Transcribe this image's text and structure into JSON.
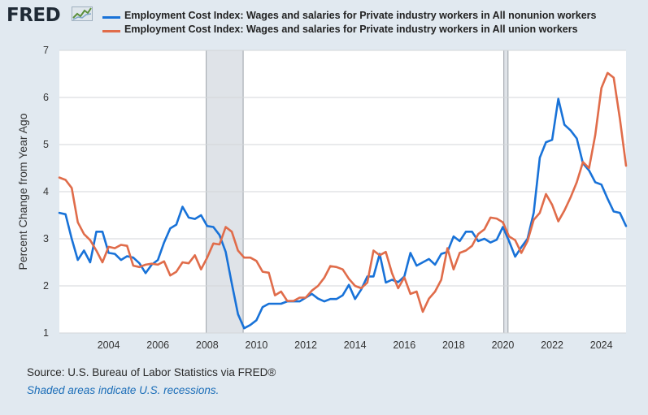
{
  "brand": {
    "logo_text": "FRED",
    "logo_icon": "line-chart-icon"
  },
  "chart_data": {
    "type": "line",
    "title": "",
    "xlabel": "",
    "ylabel": "Percent Change from Year Ago",
    "xlim": [
      2002.0,
      2025.0
    ],
    "ylim": [
      1,
      7
    ],
    "yticks": [
      1,
      2,
      3,
      4,
      5,
      6,
      7
    ],
    "xticks": [
      2004,
      2006,
      2008,
      2010,
      2012,
      2014,
      2016,
      2018,
      2020,
      2022,
      2024
    ],
    "grid": {
      "horizontal": true,
      "vertical": false
    },
    "legend": {
      "position": "top"
    },
    "recessions": [
      {
        "start": 2007.96,
        "end": 2009.46
      },
      {
        "start": 2020.04,
        "end": 2020.21
      }
    ],
    "series": [
      {
        "name": "Employment Cost Index: Wages and salaries for Private industry workers in All nonunion workers",
        "color": "#1872d8",
        "points": [
          [
            2002.0,
            3.55
          ],
          [
            2002.25,
            3.52
          ],
          [
            2002.5,
            3.0
          ],
          [
            2002.75,
            2.55
          ],
          [
            2003.0,
            2.75
          ],
          [
            2003.25,
            2.5
          ],
          [
            2003.5,
            3.15
          ],
          [
            2003.75,
            3.15
          ],
          [
            2004.0,
            2.7
          ],
          [
            2004.25,
            2.68
          ],
          [
            2004.5,
            2.55
          ],
          [
            2004.75,
            2.63
          ],
          [
            2005.0,
            2.6
          ],
          [
            2005.25,
            2.48
          ],
          [
            2005.5,
            2.27
          ],
          [
            2005.75,
            2.45
          ],
          [
            2006.0,
            2.55
          ],
          [
            2006.25,
            2.92
          ],
          [
            2006.5,
            3.22
          ],
          [
            2006.75,
            3.3
          ],
          [
            2007.0,
            3.68
          ],
          [
            2007.25,
            3.45
          ],
          [
            2007.5,
            3.42
          ],
          [
            2007.75,
            3.5
          ],
          [
            2008.0,
            3.27
          ],
          [
            2008.25,
            3.25
          ],
          [
            2008.5,
            3.08
          ],
          [
            2008.75,
            2.72
          ],
          [
            2009.0,
            2.05
          ],
          [
            2009.25,
            1.4
          ],
          [
            2009.5,
            1.1
          ],
          [
            2009.75,
            1.17
          ],
          [
            2010.0,
            1.27
          ],
          [
            2010.25,
            1.55
          ],
          [
            2010.5,
            1.62
          ],
          [
            2010.75,
            1.62
          ],
          [
            2011.0,
            1.62
          ],
          [
            2011.25,
            1.67
          ],
          [
            2011.5,
            1.67
          ],
          [
            2011.75,
            1.67
          ],
          [
            2012.0,
            1.75
          ],
          [
            2012.25,
            1.83
          ],
          [
            2012.5,
            1.73
          ],
          [
            2012.75,
            1.67
          ],
          [
            2013.0,
            1.72
          ],
          [
            2013.25,
            1.72
          ],
          [
            2013.5,
            1.8
          ],
          [
            2013.75,
            2.02
          ],
          [
            2014.0,
            1.72
          ],
          [
            2014.25,
            1.92
          ],
          [
            2014.5,
            2.2
          ],
          [
            2014.75,
            2.2
          ],
          [
            2015.0,
            2.68
          ],
          [
            2015.25,
            2.07
          ],
          [
            2015.5,
            2.13
          ],
          [
            2015.75,
            2.08
          ],
          [
            2016.0,
            2.2
          ],
          [
            2016.25,
            2.7
          ],
          [
            2016.5,
            2.43
          ],
          [
            2016.75,
            2.5
          ],
          [
            2017.0,
            2.57
          ],
          [
            2017.25,
            2.45
          ],
          [
            2017.5,
            2.68
          ],
          [
            2017.75,
            2.72
          ],
          [
            2018.0,
            3.05
          ],
          [
            2018.25,
            2.95
          ],
          [
            2018.5,
            3.15
          ],
          [
            2018.75,
            3.15
          ],
          [
            2019.0,
            2.95
          ],
          [
            2019.25,
            3.0
          ],
          [
            2019.5,
            2.92
          ],
          [
            2019.75,
            2.98
          ],
          [
            2020.0,
            3.25
          ],
          [
            2020.25,
            2.95
          ],
          [
            2020.5,
            2.62
          ],
          [
            2020.75,
            2.82
          ],
          [
            2021.0,
            3.0
          ],
          [
            2021.25,
            3.55
          ],
          [
            2021.5,
            4.72
          ],
          [
            2021.75,
            5.05
          ],
          [
            2022.0,
            5.1
          ],
          [
            2022.25,
            5.97
          ],
          [
            2022.5,
            5.42
          ],
          [
            2022.75,
            5.3
          ],
          [
            2023.0,
            5.13
          ],
          [
            2023.25,
            4.6
          ],
          [
            2023.5,
            4.45
          ],
          [
            2023.75,
            4.2
          ],
          [
            2024.0,
            4.15
          ],
          [
            2024.25,
            3.85
          ],
          [
            2024.5,
            3.58
          ],
          [
            2024.75,
            3.55
          ],
          [
            2025.0,
            3.27
          ]
        ]
      },
      {
        "name": "Employment Cost Index: Wages and salaries for Private industry workers in All union workers",
        "color": "#e06c4a",
        "points": [
          [
            2002.0,
            4.3
          ],
          [
            2002.25,
            4.25
          ],
          [
            2002.5,
            4.08
          ],
          [
            2002.75,
            3.35
          ],
          [
            2003.0,
            3.1
          ],
          [
            2003.25,
            2.97
          ],
          [
            2003.5,
            2.75
          ],
          [
            2003.75,
            2.5
          ],
          [
            2004.0,
            2.83
          ],
          [
            2004.25,
            2.8
          ],
          [
            2004.5,
            2.87
          ],
          [
            2004.75,
            2.85
          ],
          [
            2005.0,
            2.43
          ],
          [
            2005.25,
            2.4
          ],
          [
            2005.5,
            2.45
          ],
          [
            2005.75,
            2.47
          ],
          [
            2006.0,
            2.45
          ],
          [
            2006.25,
            2.52
          ],
          [
            2006.5,
            2.22
          ],
          [
            2006.75,
            2.3
          ],
          [
            2007.0,
            2.5
          ],
          [
            2007.25,
            2.48
          ],
          [
            2007.5,
            2.65
          ],
          [
            2007.75,
            2.35
          ],
          [
            2008.0,
            2.6
          ],
          [
            2008.25,
            2.9
          ],
          [
            2008.5,
            2.88
          ],
          [
            2008.75,
            3.25
          ],
          [
            2009.0,
            3.15
          ],
          [
            2009.25,
            2.75
          ],
          [
            2009.5,
            2.6
          ],
          [
            2009.75,
            2.6
          ],
          [
            2010.0,
            2.53
          ],
          [
            2010.25,
            2.3
          ],
          [
            2010.5,
            2.28
          ],
          [
            2010.75,
            1.8
          ],
          [
            2011.0,
            1.88
          ],
          [
            2011.25,
            1.68
          ],
          [
            2011.5,
            1.68
          ],
          [
            2011.75,
            1.75
          ],
          [
            2012.0,
            1.75
          ],
          [
            2012.25,
            1.9
          ],
          [
            2012.5,
            2.0
          ],
          [
            2012.75,
            2.17
          ],
          [
            2013.0,
            2.42
          ],
          [
            2013.25,
            2.4
          ],
          [
            2013.5,
            2.35
          ],
          [
            2013.75,
            2.15
          ],
          [
            2014.0,
            2.0
          ],
          [
            2014.25,
            1.95
          ],
          [
            2014.5,
            2.07
          ],
          [
            2014.75,
            2.75
          ],
          [
            2015.0,
            2.65
          ],
          [
            2015.25,
            2.72
          ],
          [
            2015.5,
            2.27
          ],
          [
            2015.75,
            1.95
          ],
          [
            2016.0,
            2.18
          ],
          [
            2016.25,
            1.83
          ],
          [
            2016.5,
            1.88
          ],
          [
            2016.75,
            1.45
          ],
          [
            2017.0,
            1.73
          ],
          [
            2017.25,
            1.88
          ],
          [
            2017.5,
            2.13
          ],
          [
            2017.75,
            2.8
          ],
          [
            2018.0,
            2.35
          ],
          [
            2018.25,
            2.7
          ],
          [
            2018.5,
            2.75
          ],
          [
            2018.75,
            2.85
          ],
          [
            2019.0,
            3.1
          ],
          [
            2019.25,
            3.2
          ],
          [
            2019.5,
            3.45
          ],
          [
            2019.75,
            3.43
          ],
          [
            2020.0,
            3.35
          ],
          [
            2020.25,
            3.05
          ],
          [
            2020.5,
            2.97
          ],
          [
            2020.75,
            2.7
          ],
          [
            2021.0,
            2.95
          ],
          [
            2021.25,
            3.4
          ],
          [
            2021.5,
            3.55
          ],
          [
            2021.75,
            3.95
          ],
          [
            2022.0,
            3.72
          ],
          [
            2022.25,
            3.37
          ],
          [
            2022.5,
            3.6
          ],
          [
            2022.75,
            3.88
          ],
          [
            2023.0,
            4.2
          ],
          [
            2023.25,
            4.63
          ],
          [
            2023.5,
            4.5
          ],
          [
            2023.75,
            5.2
          ],
          [
            2024.0,
            6.2
          ],
          [
            2024.25,
            6.52
          ],
          [
            2024.5,
            6.42
          ],
          [
            2024.75,
            5.55
          ],
          [
            2025.0,
            4.55
          ]
        ]
      }
    ]
  },
  "footer": {
    "source": "Source: U.S. Bureau of Labor Statistics via FRED®",
    "recession_note": "Shaded areas indicate U.S. recessions."
  }
}
